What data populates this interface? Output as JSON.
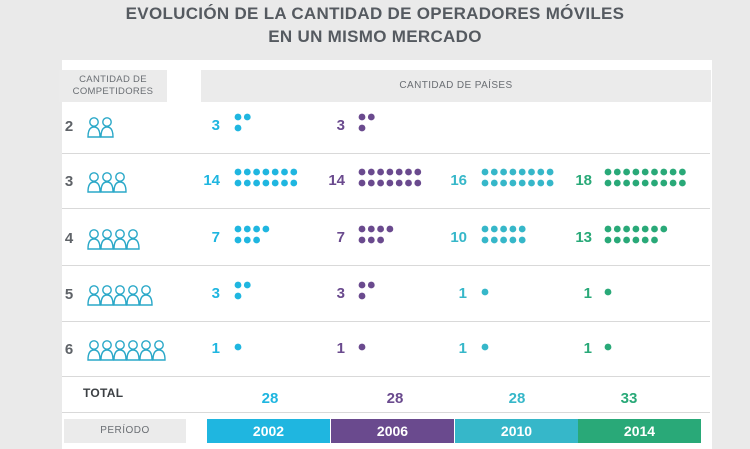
{
  "title_line1": "EVOLUCIÓN DE LA CANTIDAD DE OPERADORES MÓVILES",
  "title_line2": "EN UN MISMO MERCADO",
  "header_left_line1": "CANTIDAD DE",
  "header_left_line2": "COMPETIDORES",
  "header_right": "CANTIDAD DE PAÍSES",
  "total_label": "TOTAL",
  "period_label": "PERÍODO",
  "colors": {
    "2002": "#1fb6e0",
    "2006": "#6a4a8e",
    "2010": "#36b7c9",
    "2014": "#29a978",
    "text": "#5f6368",
    "icon": "#2aa8c8"
  },
  "chart_data": {
    "type": "table",
    "periods": [
      "2002",
      "2006",
      "2010",
      "2014"
    ],
    "competitors": [
      "2",
      "3",
      "4",
      "5",
      "6"
    ],
    "values": {
      "2002": [
        3,
        14,
        7,
        3,
        1
      ],
      "2006": [
        3,
        14,
        7,
        3,
        1
      ],
      "2010": [
        null,
        16,
        10,
        1,
        1
      ],
      "2014": [
        null,
        18,
        13,
        1,
        1
      ]
    },
    "totals": [
      "28",
      "28",
      "28",
      "33"
    ],
    "counts_display": {
      "2002": [
        "3",
        "14",
        "7",
        "3",
        "1"
      ],
      "2006": [
        "3",
        "14",
        "7",
        "3",
        "1"
      ],
      "2010": [
        "",
        "16",
        "10",
        "1",
        "1"
      ],
      "2014": [
        "",
        "18",
        "13",
        "1",
        "1"
      ]
    }
  }
}
